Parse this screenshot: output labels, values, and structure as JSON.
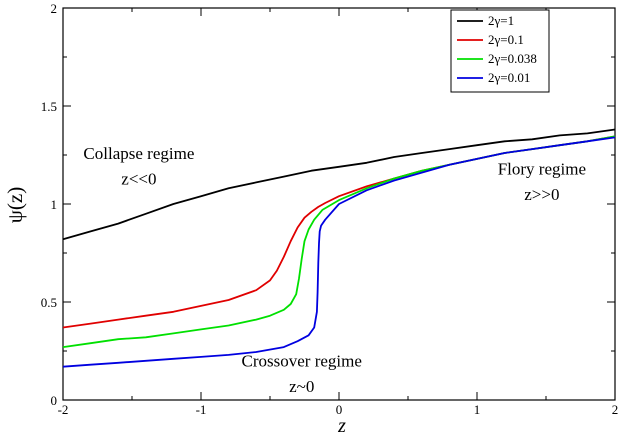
{
  "chart_data": {
    "type": "line",
    "title": "",
    "xlabel": "z",
    "ylabel": "ψ(z)",
    "xlim": [
      -2,
      2
    ],
    "ylim": [
      0,
      2
    ],
    "x_ticks": [
      "-2",
      "-1",
      "0",
      "1",
      "2"
    ],
    "y_ticks": [
      "0",
      "0.5",
      "1",
      "1.5",
      "2"
    ],
    "grid": false,
    "legend_position": "top-right",
    "series": [
      {
        "name": "2γ=1",
        "color": "#000000",
        "points": [
          [
            -2,
            0.82
          ],
          [
            -1.8,
            0.86
          ],
          [
            -1.6,
            0.9
          ],
          [
            -1.4,
            0.95
          ],
          [
            -1.2,
            1.0
          ],
          [
            -1.0,
            1.04
          ],
          [
            -0.8,
            1.08
          ],
          [
            -0.6,
            1.11
          ],
          [
            -0.4,
            1.14
          ],
          [
            -0.2,
            1.17
          ],
          [
            0,
            1.19
          ],
          [
            0.2,
            1.21
          ],
          [
            0.4,
            1.24
          ],
          [
            0.6,
            1.26
          ],
          [
            0.8,
            1.28
          ],
          [
            1.0,
            1.3
          ],
          [
            1.2,
            1.32
          ],
          [
            1.4,
            1.33
          ],
          [
            1.6,
            1.35
          ],
          [
            1.8,
            1.36
          ],
          [
            2.0,
            1.38
          ]
        ]
      },
      {
        "name": "2γ=0.1",
        "color": "#e00000",
        "points": [
          [
            -2,
            0.37
          ],
          [
            -1.8,
            0.39
          ],
          [
            -1.6,
            0.41
          ],
          [
            -1.4,
            0.43
          ],
          [
            -1.2,
            0.45
          ],
          [
            -1.0,
            0.48
          ],
          [
            -0.8,
            0.51
          ],
          [
            -0.6,
            0.56
          ],
          [
            -0.5,
            0.61
          ],
          [
            -0.45,
            0.66
          ],
          [
            -0.4,
            0.73
          ],
          [
            -0.35,
            0.81
          ],
          [
            -0.3,
            0.88
          ],
          [
            -0.25,
            0.93
          ],
          [
            -0.2,
            0.96
          ],
          [
            -0.15,
            0.985
          ],
          [
            -0.1,
            1.005
          ],
          [
            0,
            1.04
          ],
          [
            0.2,
            1.09
          ],
          [
            0.4,
            1.13
          ],
          [
            0.6,
            1.17
          ],
          [
            0.8,
            1.2
          ],
          [
            1.0,
            1.23
          ],
          [
            1.2,
            1.26
          ],
          [
            1.4,
            1.28
          ],
          [
            1.6,
            1.3
          ],
          [
            1.8,
            1.32
          ],
          [
            2.0,
            1.345
          ]
        ]
      },
      {
        "name": "2γ=0.038",
        "color": "#00e000",
        "points": [
          [
            -2,
            0.27
          ],
          [
            -1.8,
            0.29
          ],
          [
            -1.6,
            0.31
          ],
          [
            -1.4,
            0.32
          ],
          [
            -1.2,
            0.34
          ],
          [
            -1.0,
            0.36
          ],
          [
            -0.8,
            0.38
          ],
          [
            -0.6,
            0.41
          ],
          [
            -0.5,
            0.43
          ],
          [
            -0.4,
            0.46
          ],
          [
            -0.35,
            0.49
          ],
          [
            -0.31,
            0.54
          ],
          [
            -0.29,
            0.62
          ],
          [
            -0.27,
            0.72
          ],
          [
            -0.25,
            0.81
          ],
          [
            -0.22,
            0.87
          ],
          [
            -0.18,
            0.92
          ],
          [
            -0.12,
            0.97
          ],
          [
            0,
            1.02
          ],
          [
            0.2,
            1.08
          ],
          [
            0.4,
            1.13
          ],
          [
            0.6,
            1.17
          ],
          [
            0.8,
            1.2
          ],
          [
            1.0,
            1.23
          ],
          [
            1.2,
            1.26
          ],
          [
            1.4,
            1.28
          ],
          [
            1.6,
            1.3
          ],
          [
            1.8,
            1.32
          ],
          [
            2.0,
            1.345
          ]
        ]
      },
      {
        "name": "2γ=0.01",
        "color": "#0000e0",
        "points": [
          [
            -2,
            0.17
          ],
          [
            -1.8,
            0.18
          ],
          [
            -1.6,
            0.19
          ],
          [
            -1.4,
            0.2
          ],
          [
            -1.2,
            0.21
          ],
          [
            -1.0,
            0.22
          ],
          [
            -0.8,
            0.23
          ],
          [
            -0.6,
            0.245
          ],
          [
            -0.4,
            0.27
          ],
          [
            -0.3,
            0.3
          ],
          [
            -0.22,
            0.33
          ],
          [
            -0.18,
            0.37
          ],
          [
            -0.16,
            0.45
          ],
          [
            -0.155,
            0.55
          ],
          [
            -0.15,
            0.7
          ],
          [
            -0.145,
            0.8
          ],
          [
            -0.14,
            0.86
          ],
          [
            -0.13,
            0.89
          ],
          [
            -0.1,
            0.92
          ],
          [
            0,
            1.0
          ],
          [
            0.2,
            1.07
          ],
          [
            0.4,
            1.12
          ],
          [
            0.6,
            1.16
          ],
          [
            0.8,
            1.2
          ],
          [
            1.0,
            1.23
          ],
          [
            1.2,
            1.26
          ],
          [
            1.4,
            1.28
          ],
          [
            1.6,
            1.3
          ],
          [
            1.8,
            1.32
          ],
          [
            2.0,
            1.34
          ]
        ]
      }
    ],
    "annotations": [
      {
        "text": "Collapse regime",
        "x": -1.45,
        "y": 1.23
      },
      {
        "text": "z<<0",
        "x": -1.45,
        "y": 1.1
      },
      {
        "text": "Flory regime",
        "x": 1.47,
        "y": 1.15
      },
      {
        "text": "z>>0",
        "x": 1.47,
        "y": 1.02
      },
      {
        "text": "Crossover regime",
        "x": -0.27,
        "y": 0.17
      },
      {
        "text": "z~0",
        "x": -0.27,
        "y": 0.04
      }
    ]
  }
}
